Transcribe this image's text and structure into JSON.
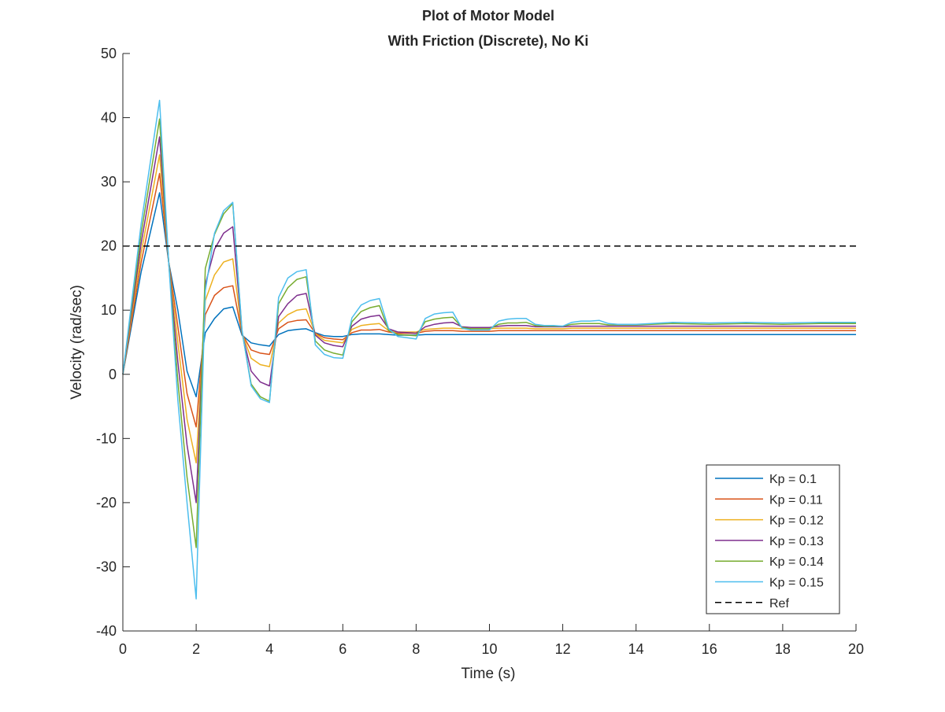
{
  "chart_data": {
    "type": "line",
    "title": [
      "Plot of Motor Model",
      "With Friction (Discrete), No Ki"
    ],
    "xlabel": "Time (s)",
    "ylabel": "Velocity (rad/sec)",
    "xlim": [
      0,
      20
    ],
    "ylim": [
      -40,
      50
    ],
    "xticks": [
      0,
      2,
      4,
      6,
      8,
      10,
      12,
      14,
      16,
      18,
      20
    ],
    "yticks": [
      -40,
      -30,
      -20,
      -10,
      0,
      10,
      20,
      30,
      40,
      50
    ],
    "grid": false,
    "legend_position": "bottom-right",
    "x": [
      0,
      0.5,
      1,
      1.25,
      1.5,
      1.75,
      2,
      2.25,
      2.5,
      2.75,
      3,
      3.25,
      3.5,
      3.75,
      4,
      4.25,
      4.5,
      4.75,
      5,
      5.25,
      5.5,
      5.75,
      6,
      6.25,
      6.5,
      6.75,
      7,
      7.25,
      7.5,
      7.75,
      8,
      8.25,
      8.5,
      8.75,
      9,
      9.25,
      9.5,
      9.75,
      10,
      10.25,
      10.5,
      10.75,
      11,
      11.25,
      11.5,
      11.75,
      12,
      12.25,
      12.5,
      12.75,
      13,
      13.25,
      13.5,
      13.75,
      14,
      15,
      16,
      17,
      18,
      19,
      20
    ],
    "series": [
      {
        "name": "Kp = 0.1",
        "color": "#0072BD",
        "dash": "solid",
        "values": [
          0,
          16,
          28.3,
          17.5,
          10,
          0.5,
          -3.5,
          6.5,
          8.7,
          10.2,
          10.5,
          6.1,
          4.9,
          4.6,
          4.4,
          6.2,
          6.8,
          7.0,
          7.1,
          6.5,
          6.0,
          5.9,
          5.9,
          6.2,
          6.3,
          6.3,
          6.3,
          6.2,
          6.1,
          6.1,
          6.1,
          6.2,
          6.2,
          6.2,
          6.2,
          6.2,
          6.2,
          6.2,
          6.2,
          6.2,
          6.2,
          6.2,
          6.2,
          6.2,
          6.2,
          6.2,
          6.2,
          6.2,
          6.2,
          6.2,
          6.2,
          6.2,
          6.2,
          6.2,
          6.2,
          6.2,
          6.2,
          6.2,
          6.2,
          6.2,
          6.2
        ]
      },
      {
        "name": "Kp = 0.11",
        "color": "#D95319",
        "dash": "solid",
        "values": [
          0,
          17.5,
          31.3,
          17.5,
          7.5,
          -3,
          -8.2,
          9.3,
          12.3,
          13.5,
          13.8,
          6.3,
          3.8,
          3.3,
          3.1,
          7.1,
          8.1,
          8.4,
          8.5,
          6.4,
          5.7,
          5.5,
          5.4,
          6.5,
          6.9,
          6.9,
          7.0,
          6.6,
          6.4,
          6.4,
          6.4,
          6.7,
          6.8,
          6.8,
          6.8,
          6.7,
          6.7,
          6.7,
          6.7,
          6.8,
          6.8,
          6.8,
          6.8,
          6.8,
          6.8,
          6.8,
          6.8,
          6.8,
          6.8,
          6.8,
          6.8,
          6.8,
          6.8,
          6.8,
          6.8,
          6.8,
          6.8,
          6.8,
          6.8,
          6.8,
          6.8
        ]
      },
      {
        "name": "Kp = 0.12",
        "color": "#EDB120",
        "dash": "solid",
        "values": [
          0,
          19,
          34.2,
          17.5,
          5,
          -7,
          -13.8,
          11.5,
          15.5,
          17.5,
          18,
          6.4,
          2.5,
          1.5,
          1.2,
          8,
          9.3,
          10,
          10.2,
          6.3,
          5.3,
          5.1,
          4.9,
          7,
          7.6,
          7.8,
          7.9,
          6.8,
          6.6,
          6.6,
          6.6,
          7.0,
          7.1,
          7.2,
          7.2,
          7.1,
          7.1,
          7.1,
          7.1,
          7.2,
          7.2,
          7.2,
          7.2,
          7.1,
          7.1,
          7.1,
          7.1,
          7.2,
          7.2,
          7.2,
          7.2,
          7.2,
          7.2,
          7.2,
          7.2,
          7.2,
          7.2,
          7.2,
          7.2,
          7.2,
          7.2
        ]
      },
      {
        "name": "Kp = 0.13",
        "color": "#7E2F8E",
        "dash": "solid",
        "values": [
          0,
          20.5,
          37,
          17.5,
          2,
          -11,
          -20,
          14,
          19.5,
          22,
          23,
          6.5,
          0.5,
          -1.2,
          -1.8,
          9,
          11,
          12.3,
          12.6,
          6.1,
          4.9,
          4.5,
          4.3,
          7.5,
          8.6,
          9.0,
          9.2,
          7.1,
          6.6,
          6.5,
          6.4,
          7.4,
          7.8,
          8.0,
          8.1,
          7.4,
          7.3,
          7.3,
          7.3,
          7.5,
          7.6,
          7.6,
          7.6,
          7.4,
          7.4,
          7.4,
          7.4,
          7.5,
          7.5,
          7.5,
          7.5,
          7.5,
          7.5,
          7.5,
          7.5,
          7.5,
          7.5,
          7.5,
          7.5,
          7.5,
          7.5
        ]
      },
      {
        "name": "Kp = 0.14",
        "color": "#77AC30",
        "dash": "solid",
        "values": [
          0,
          22,
          39.8,
          17.5,
          -1,
          -16,
          -27,
          16.5,
          21.8,
          25,
          26.6,
          6.7,
          -1.5,
          -3.5,
          -4.2,
          11,
          13.5,
          14.8,
          15.2,
          5.2,
          3.8,
          3.3,
          3.0,
          8.2,
          9.8,
          10.4,
          10.7,
          6.8,
          6.2,
          6.1,
          6.0,
          8.2,
          8.6,
          8.8,
          8.9,
          7.3,
          7.1,
          7.1,
          7.1,
          7.8,
          8.0,
          8.0,
          8.1,
          7.6,
          7.5,
          7.5,
          7.5,
          7.8,
          7.9,
          7.9,
          7.9,
          7.7,
          7.7,
          7.7,
          7.7,
          7.9,
          7.8,
          7.9,
          7.8,
          7.9,
          7.9
        ]
      },
      {
        "name": "Kp = 0.15",
        "color": "#4DBEEE",
        "dash": "solid",
        "values": [
          0,
          23.5,
          42.7,
          17.5,
          -4,
          -20,
          -35,
          13,
          22,
          25.5,
          26.8,
          6.9,
          -1.8,
          -3.8,
          -4.4,
          12,
          15,
          16,
          16.3,
          4.6,
          3.1,
          2.6,
          2.5,
          8.8,
          10.8,
          11.5,
          11.8,
          7.1,
          5.9,
          5.7,
          5.5,
          8.7,
          9.4,
          9.6,
          9.7,
          7.2,
          6.9,
          6.9,
          6.9,
          8.3,
          8.6,
          8.7,
          8.7,
          7.8,
          7.6,
          7.6,
          7.5,
          8.1,
          8.3,
          8.3,
          8.4,
          7.9,
          7.8,
          7.8,
          7.8,
          8.1,
          8.0,
          8.1,
          8.0,
          8.1,
          8.1
        ]
      },
      {
        "name": "Ref",
        "color": "#000000",
        "dash": "dashed",
        "values": [
          20,
          20,
          20,
          20,
          20,
          20,
          20,
          20,
          20,
          20,
          20,
          20,
          20,
          20,
          20,
          20,
          20,
          20,
          20,
          20,
          20,
          20,
          20,
          20,
          20,
          20,
          20,
          20,
          20,
          20,
          20,
          20,
          20,
          20,
          20,
          20,
          20,
          20,
          20,
          20,
          20,
          20,
          20,
          20,
          20,
          20,
          20,
          20,
          20,
          20,
          20,
          20,
          20,
          20,
          20,
          20,
          20,
          20,
          20,
          20,
          20
        ]
      }
    ]
  }
}
